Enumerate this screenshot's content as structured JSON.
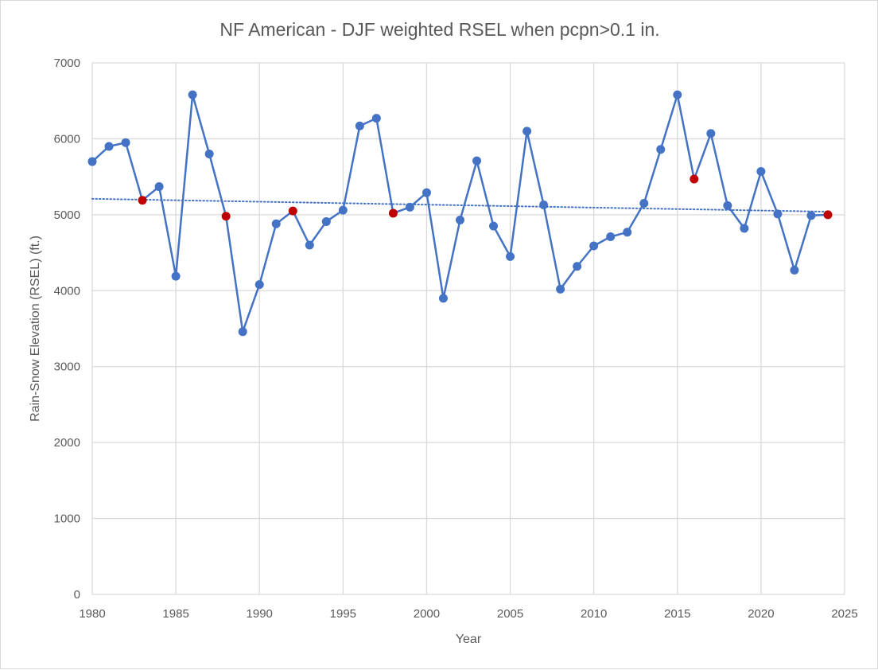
{
  "chart_data": {
    "type": "scatter",
    "title": "NF American - DJF weighted RSEL when pcpn>0.1 in.",
    "xlabel": "Year",
    "ylabel": "Rain-Snow Elevation (RSEL) (ft.)",
    "xlim": [
      1980,
      2025
    ],
    "ylim": [
      0,
      7000
    ],
    "x_ticks": [
      1980,
      1985,
      1990,
      1995,
      2000,
      2005,
      2010,
      2015,
      2020,
      2025
    ],
    "y_ticks": [
      0,
      1000,
      2000,
      3000,
      4000,
      5000,
      6000,
      7000
    ],
    "grid": true,
    "legend": "none",
    "colors": {
      "series": "#4472c4",
      "highlight": "#c00000",
      "grid": "#d9d9d9",
      "text": "#595959"
    },
    "series": [
      {
        "x": [
          1980,
          1981,
          1982,
          1983,
          1984,
          1985,
          1986,
          1987,
          1988,
          1989,
          1990,
          1991,
          1992,
          1993,
          1994,
          1995,
          1996,
          1997,
          1998,
          1999,
          2000,
          2001,
          2002,
          2003,
          2004,
          2005,
          2006,
          2007,
          2008,
          2009,
          2010,
          2011,
          2012,
          2013,
          2014,
          2015,
          2016,
          2017,
          2018,
          2019,
          2020,
          2021,
          2022,
          2023,
          2024
        ],
        "y": [
          5700,
          5900,
          5950,
          5190,
          5370,
          4190,
          6580,
          5800,
          4980,
          3460,
          4080,
          4880,
          5050,
          4600,
          4910,
          5060,
          6170,
          6270,
          5020,
          5100,
          5290,
          3900,
          4930,
          5710,
          4850,
          4450,
          6100,
          5130,
          4020,
          4320,
          4590,
          4710,
          4770,
          5150,
          5860,
          6580,
          5470,
          6070,
          5120,
          4820,
          5570,
          5010,
          4270,
          4990,
          5000
        ]
      }
    ],
    "highlighted_years": [
      1983,
      1988,
      1992,
      1998,
      2016,
      2024
    ],
    "trendline": {
      "style": "dotted",
      "x": [
        1980,
        2024
      ],
      "y": [
        5210,
        5040
      ]
    }
  }
}
